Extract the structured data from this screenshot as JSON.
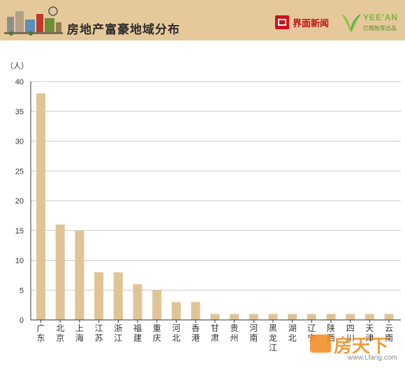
{
  "header": {
    "title": "房地产富豪地域分布",
    "brand_left": "界面新闻",
    "brand_right_main": "YEE'AN",
    "brand_right_sub": "亿翰智库出品"
  },
  "watermark": {
    "name": "房天下",
    "url": "www.Lfang.com"
  },
  "colors": {
    "header_bg": "#e6c99a",
    "bar": "#e0c496",
    "axis": "#333333",
    "grid": "#c9c9c9"
  },
  "chart_data": {
    "type": "bar",
    "unit_label": "（人）",
    "categories": [
      "广东",
      "北京",
      "上海",
      "江苏",
      "浙江",
      "福建",
      "重庆",
      "河北",
      "香港",
      "甘肃",
      "贵州",
      "河南",
      "黑龙江",
      "湖北",
      "辽宁",
      "陕西",
      "四川",
      "天津",
      "云南"
    ],
    "values": [
      38,
      16,
      15,
      8,
      8,
      6,
      5,
      3,
      3,
      1,
      1,
      1,
      1,
      1,
      1,
      1,
      1,
      1,
      1
    ],
    "ylim": [
      0,
      40
    ],
    "yticks": [
      0,
      5,
      10,
      15,
      20,
      25,
      30,
      35,
      40
    ],
    "grid": true,
    "legend": "none"
  }
}
